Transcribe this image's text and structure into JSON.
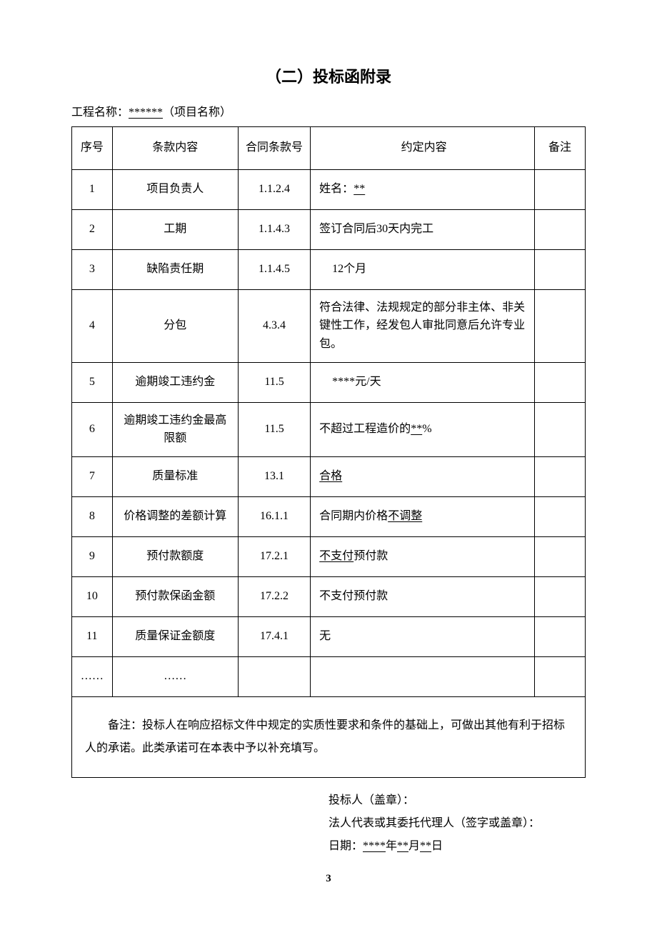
{
  "title": "（二）投标函附录",
  "project_label": "工程名称：",
  "project_placeholder": "******",
  "project_hint": "（项目名称）",
  "columns": [
    "序号",
    "条款内容",
    "合同条款号",
    "约定内容",
    "备注"
  ],
  "rows": [
    {
      "no": "1",
      "item": "项目负责人",
      "clause": "1.1.2.4",
      "content_prefix": "姓名：",
      "content_value": "**",
      "content_underline": true,
      "remark": ""
    },
    {
      "no": "2",
      "item": "工期",
      "clause": "1.1.4.3",
      "content_prefix": "签订合同后30天内完工",
      "content_value": "",
      "content_underline": false,
      "remark": ""
    },
    {
      "no": "3",
      "item": "缺陷责任期",
      "clause": "1.1.4.5",
      "content_prefix": "",
      "content_value": "12个月",
      "content_underline": false,
      "remark": "",
      "indent": true
    },
    {
      "no": "4",
      "item": "分包",
      "clause": "4.3.4",
      "content_prefix": "符合法律、法规规定的部分非主体、非关键性工作，经发包人审批同意后允许专业包。",
      "content_value": "",
      "content_underline": false,
      "remark": "",
      "tall": true
    },
    {
      "no": "5",
      "item": "逾期竣工违约金",
      "clause": "11.5",
      "content_prefix": "",
      "content_value": "****元/天",
      "content_underline": false,
      "remark": "",
      "indent": true
    },
    {
      "no": "6",
      "item": "逾期竣工违约金最高限额",
      "clause": "11.5",
      "content_prefix": "不超过工程造价的",
      "content_value": "**",
      "content_suffix": "%",
      "content_underline": true,
      "remark": ""
    },
    {
      "no": "7",
      "item": "质量标准",
      "clause": "13.1",
      "content_prefix": "",
      "content_value": "合格",
      "content_underline": true,
      "remark": ""
    },
    {
      "no": "8",
      "item": "价格调整的差额计算",
      "clause": "16.1.1",
      "content_prefix": "合同期内价格",
      "content_value": "不调整",
      "content_underline": true,
      "remark": ""
    },
    {
      "no": "9",
      "item": "预付款额度",
      "clause": "17.2.1",
      "content_prefix": "",
      "content_value": "不支付",
      "content_suffix": "预付款",
      "content_underline": true,
      "remark": ""
    },
    {
      "no": "10",
      "item": "预付款保函金额",
      "clause": "17.2.2",
      "content_prefix": "不支付预付款",
      "content_value": "",
      "content_underline": false,
      "remark": ""
    },
    {
      "no": "11",
      "item": "质量保证金额度",
      "clause": "17.4.1",
      "content_prefix": "无",
      "content_value": "",
      "content_underline": false,
      "remark": ""
    },
    {
      "no": "……",
      "item": "……",
      "clause": "",
      "content_prefix": "",
      "content_value": "",
      "content_underline": false,
      "remark": ""
    }
  ],
  "note": "备注：投标人在响应招标文件中规定的实质性要求和条件的基础上，可做出其他有利于招标人的承诺。此类承诺可在本表中予以补充填写。",
  "signature": {
    "bidder": "投标人（盖章）：",
    "rep": "法人代表或其委托代理人（签字或盖章）：",
    "date_label": "日期：",
    "date_year": "****",
    "date_year_suffix": "年",
    "date_month": "**",
    "date_month_suffix": "月",
    "date_day": "**",
    "date_day_suffix": "日"
  },
  "page_number": "3"
}
